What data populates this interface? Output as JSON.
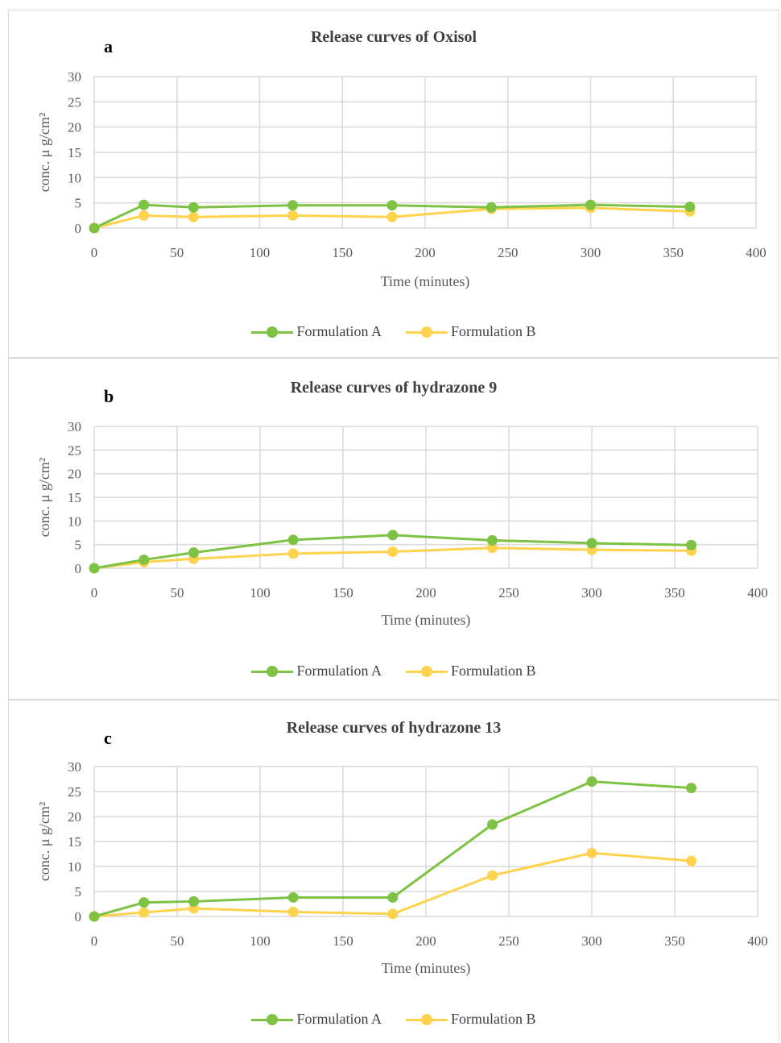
{
  "chart_data": [
    {
      "type": "line",
      "panel_label": "a",
      "title": "Release curves of Oxisol",
      "xlabel": "Time (minutes)",
      "ylabel": "conc. μ g/cm²",
      "xlim": [
        0,
        400
      ],
      "ylim": [
        0,
        30
      ],
      "xticks": [
        "0",
        "50",
        "100",
        "150",
        "200",
        "250",
        "300",
        "350",
        "400"
      ],
      "yticks": [
        "0",
        "5",
        "10",
        "15",
        "20",
        "25",
        "30"
      ],
      "grid": true,
      "legend_position": "bottom",
      "x": [
        0,
        30,
        60,
        120,
        180,
        240,
        300,
        360
      ],
      "series": [
        {
          "name": "Formulation A",
          "color": "#7dc242",
          "values": [
            0,
            4.6,
            4.1,
            4.5,
            4.5,
            4.1,
            4.6,
            4.2
          ]
        },
        {
          "name": "Formulation B",
          "color": "#ffd24d",
          "values": [
            0,
            2.5,
            2.2,
            2.5,
            2.2,
            3.8,
            4.0,
            3.3
          ]
        }
      ]
    },
    {
      "type": "line",
      "panel_label": "b",
      "title": "Release curves of hydrazone 9",
      "xlabel": "Time (minutes)",
      "ylabel": "conc. μ g/cm²",
      "xlim": [
        0,
        400
      ],
      "ylim": [
        0,
        30
      ],
      "xticks": [
        "0",
        "50",
        "100",
        "150",
        "200",
        "250",
        "300",
        "350",
        "400"
      ],
      "yticks": [
        "0",
        "5",
        "10",
        "15",
        "20",
        "25",
        "30"
      ],
      "grid": true,
      "legend_position": "bottom",
      "x": [
        0,
        30,
        60,
        120,
        180,
        240,
        300,
        360
      ],
      "series": [
        {
          "name": "Formulation A",
          "color": "#7dc242",
          "values": [
            0,
            1.8,
            3.3,
            6.0,
            7.0,
            5.9,
            5.3,
            4.9
          ]
        },
        {
          "name": "Formulation B",
          "color": "#ffd24d",
          "values": [
            0,
            1.3,
            2.0,
            3.1,
            3.5,
            4.3,
            3.9,
            3.7
          ]
        }
      ]
    },
    {
      "type": "line",
      "panel_label": "c",
      "title": "Release curves of hydrazone 13",
      "xlabel": "Time (minutes)",
      "ylabel": "conc. μ g/cm²",
      "xlim": [
        0,
        400
      ],
      "ylim": [
        0,
        30
      ],
      "xticks": [
        "0",
        "50",
        "100",
        "150",
        "200",
        "250",
        "300",
        "350",
        "400"
      ],
      "yticks": [
        "0",
        "5",
        "10",
        "15",
        "20",
        "25",
        "30"
      ],
      "grid": true,
      "legend_position": "bottom",
      "x": [
        0,
        30,
        60,
        120,
        180,
        240,
        300,
        360
      ],
      "series": [
        {
          "name": "Formulation A",
          "color": "#7dc242",
          "values": [
            0,
            2.8,
            3.0,
            3.8,
            3.8,
            18.4,
            27.0,
            25.7
          ]
        },
        {
          "name": "Formulation B",
          "color": "#ffd24d",
          "values": [
            0,
            0.8,
            1.6,
            0.9,
            0.5,
            8.2,
            12.7,
            11.1
          ]
        }
      ]
    }
  ]
}
